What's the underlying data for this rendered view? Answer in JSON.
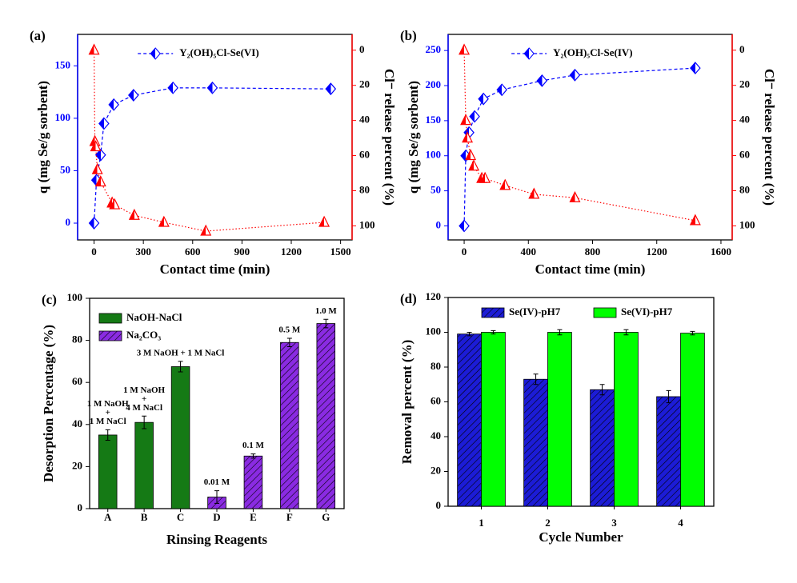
{
  "chart_data": [
    {
      "type": "line",
      "label": "(a)",
      "xlabel": "Contact time (min)",
      "ylabel": "q (mg Se/g sorbent)",
      "y2label": "Cl⁻ release percent (%)",
      "xlim": [
        -100,
        1570
      ],
      "xticks": [
        0,
        300,
        600,
        900,
        1200,
        1500
      ],
      "ylim": [
        -16,
        180
      ],
      "yticks": [
        0,
        50,
        100,
        150
      ],
      "y2lim": [
        108,
        -9
      ],
      "y2ticks": [
        0,
        20,
        40,
        60,
        80,
        100
      ],
      "legend": "upper center",
      "series": [
        {
          "name": "Y₂(OH)₅Cl-Se(VI)",
          "color": "#0000ff",
          "marker": "diamond",
          "linestyle": "dashed",
          "x": [
            0,
            15,
            40,
            60,
            120,
            240,
            480,
            720,
            1440
          ],
          "values": [
            0,
            41,
            65,
            95,
            113,
            122,
            129,
            129,
            128
          ]
        },
        {
          "color": "#ff0000",
          "marker": "triangle",
          "linestyle": "dotted",
          "axis": "y2",
          "x": [
            0,
            5,
            10,
            20,
            40,
            110,
            125,
            245,
            425,
            680,
            1400
          ],
          "values": [
            0,
            52,
            55,
            68,
            75,
            87,
            88,
            94,
            98,
            103,
            98
          ]
        }
      ]
    },
    {
      "type": "line",
      "label": "(b)",
      "xlabel": "Contact time (min)",
      "ylabel": "q (mg Se/g sorbent)",
      "y2label": "Cl⁻ release percent (%)",
      "xlim": [
        -100,
        1670
      ],
      "xticks": [
        0,
        400,
        800,
        1200,
        1600
      ],
      "ylim": [
        -20,
        273
      ],
      "yticks": [
        0,
        50,
        100,
        150,
        200,
        250
      ],
      "y2lim": [
        108,
        -9
      ],
      "y2ticks": [
        0,
        20,
        40,
        60,
        80,
        100
      ],
      "legend": "upper center",
      "series": [
        {
          "name": "Y₂(OH)₅Cl-Se(IV)",
          "color": "#0000ff",
          "marker": "diamond",
          "linestyle": "dashed",
          "x": [
            0,
            10,
            30,
            65,
            120,
            235,
            485,
            690,
            1440
          ],
          "values": [
            0,
            100,
            133,
            156,
            181,
            194,
            207,
            215,
            225
          ]
        },
        {
          "color": "#ff0000",
          "marker": "triangle",
          "linestyle": "dotted",
          "axis": "y2",
          "x": [
            0,
            10,
            20,
            40,
            60,
            110,
            130,
            255,
            435,
            690,
            1440
          ],
          "values": [
            0,
            40,
            50,
            60,
            66,
            73,
            73,
            77,
            82,
            84,
            97
          ]
        }
      ]
    },
    {
      "type": "bar",
      "label": "(c)",
      "xlabel": "Rinsing Reagents",
      "ylabel": "Desorption Percentage (%)",
      "categories": [
        "A",
        "B",
        "C",
        "D",
        "E",
        "F",
        "G"
      ],
      "ylim": [
        0,
        100
      ],
      "yticks": [
        0,
        20,
        40,
        60,
        80,
        100
      ],
      "legend": "upper left",
      "grouped": false,
      "series": [
        {
          "name": "NaOH-NaCl",
          "color": "#157a15",
          "values": [
            35,
            41,
            67.5,
            null,
            null,
            null,
            null
          ],
          "errors": [
            2.5,
            3,
            2.5,
            null,
            null,
            null,
            null
          ]
        },
        {
          "name": "Na₂CO₃",
          "color": "#8a2be2",
          "hatch": true,
          "values": [
            null,
            null,
            null,
            5.5,
            25,
            79,
            88
          ],
          "errors": [
            null,
            null,
            null,
            3,
            1,
            2,
            2
          ]
        }
      ],
      "annotations": [
        [
          "1 M NaOH",
          "+",
          "1 M NaCl"
        ],
        [
          "1 M NaOH",
          "+",
          "4 M NaCl"
        ],
        [
          "3 M NaOH + 1 M NaCl"
        ],
        [
          "0.01 M"
        ],
        [
          "0.1 M"
        ],
        [
          "0.5 M"
        ],
        [
          "1.0 M"
        ]
      ]
    },
    {
      "type": "bar",
      "label": "(d)",
      "xlabel": "Cycle Number",
      "ylabel": "Removal percent (%)",
      "categories": [
        "1",
        "2",
        "3",
        "4"
      ],
      "ylim": [
        0,
        120
      ],
      "yticks": [
        0,
        20,
        40,
        60,
        80,
        100,
        120
      ],
      "legend": "upper center",
      "grouped": true,
      "series": [
        {
          "name": "Se(IV)-pH7",
          "color": "#1c1cd6",
          "hatch": true,
          "values": [
            99,
            73,
            67,
            63
          ],
          "errors": [
            1,
            3,
            3,
            3.5
          ]
        },
        {
          "name": "Se(VI)-pH7",
          "color": "#00ff00",
          "values": [
            100,
            100,
            100,
            99.5
          ],
          "errors": [
            1,
            1.5,
            1.5,
            1
          ]
        }
      ]
    }
  ]
}
